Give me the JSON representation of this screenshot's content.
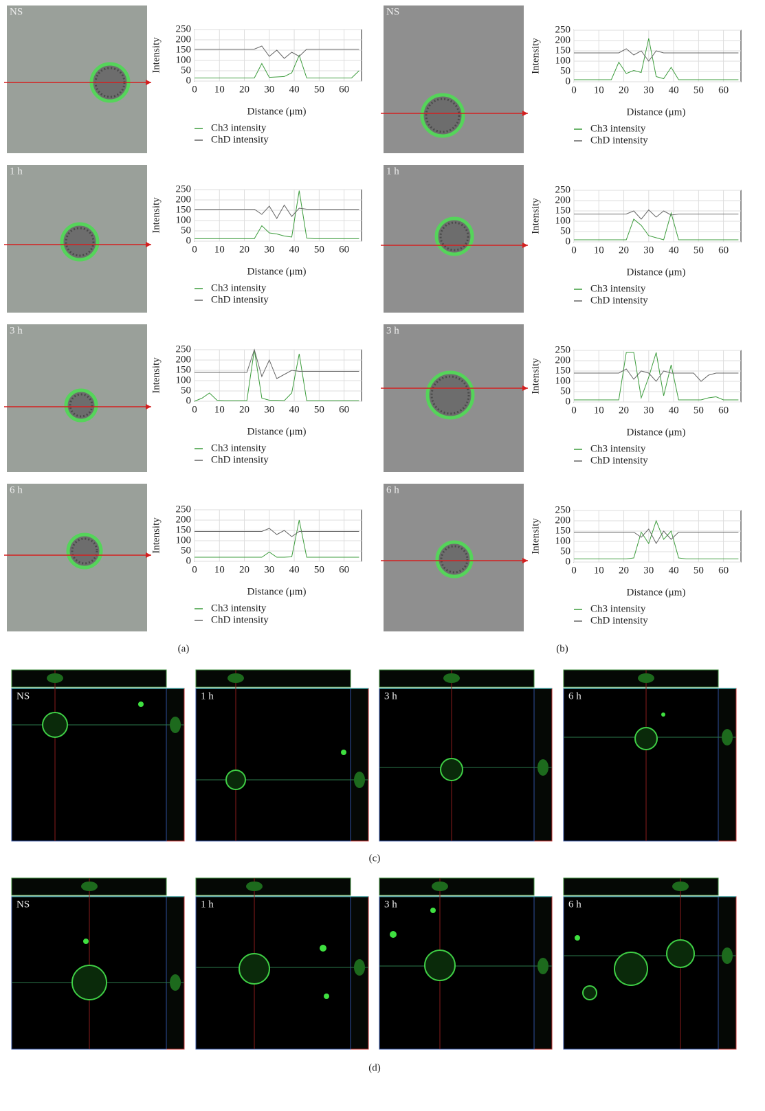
{
  "captions": [
    "(a)",
    "(b)",
    "(c)",
    "(d)"
  ],
  "chart_data": [
    {
      "type": "line",
      "image_label": "NS",
      "x_label": "Distance (μm)",
      "y_label": "Intensity",
      "x": [
        0,
        3,
        6,
        9,
        12,
        15,
        18,
        21,
        24,
        27,
        30,
        33,
        36,
        39,
        42,
        45,
        48,
        51,
        54,
        57,
        60,
        63,
        66
      ],
      "series": [
        {
          "name": "Ch3 intensity",
          "color": "#3c9c3c",
          "values": [
            15,
            15,
            15,
            15,
            15,
            15,
            15,
            15,
            15,
            85,
            18,
            20,
            22,
            40,
            125,
            15,
            15,
            15,
            15,
            15,
            15,
            15,
            50
          ]
        },
        {
          "name": "ChD intensity",
          "color": "#666666",
          "values": [
            155,
            155,
            155,
            155,
            155,
            155,
            155,
            155,
            155,
            170,
            120,
            150,
            110,
            140,
            120,
            155,
            155,
            155,
            155,
            155,
            155,
            155,
            155
          ]
        }
      ],
      "xlim": [
        0,
        67
      ],
      "ylim": [
        0,
        250
      ],
      "xticks": [
        0,
        10,
        20,
        30,
        40,
        50,
        60
      ],
      "yticks": [
        0,
        50,
        100,
        150,
        200,
        250
      ],
      "grid": true
    },
    {
      "type": "line",
      "image_label": "1 h",
      "x_label": "Distance (μm)",
      "y_label": "Intensity",
      "x": [
        0,
        3,
        6,
        9,
        12,
        15,
        18,
        21,
        24,
        27,
        30,
        33,
        36,
        39,
        42,
        45,
        48,
        51,
        54,
        57,
        60,
        63,
        66
      ],
      "series": [
        {
          "name": "Ch3 intensity",
          "color": "#3c9c3c",
          "values": [
            12,
            12,
            12,
            12,
            12,
            12,
            12,
            12,
            12,
            75,
            40,
            35,
            25,
            20,
            245,
            15,
            12,
            12,
            12,
            12,
            12,
            12,
            12
          ]
        },
        {
          "name": "ChD intensity",
          "color": "#666666",
          "values": [
            155,
            155,
            155,
            155,
            155,
            155,
            155,
            155,
            155,
            130,
            170,
            110,
            175,
            120,
            160,
            155,
            155,
            155,
            155,
            155,
            155,
            155,
            155
          ]
        }
      ],
      "xlim": [
        0,
        67
      ],
      "ylim": [
        0,
        250
      ],
      "xticks": [
        0,
        10,
        20,
        30,
        40,
        50,
        60
      ],
      "yticks": [
        0,
        50,
        100,
        150,
        200,
        250
      ],
      "grid": true
    },
    {
      "type": "line",
      "image_label": "3 h",
      "x_label": "Distance (μm)",
      "y_label": "Intensity",
      "x": [
        0,
        3,
        6,
        9,
        12,
        15,
        18,
        21,
        24,
        27,
        30,
        33,
        36,
        39,
        42,
        45,
        48,
        51,
        54,
        57,
        60,
        63,
        66
      ],
      "series": [
        {
          "name": "Ch3 intensity",
          "color": "#3c9c3c",
          "values": [
            0,
            15,
            40,
            5,
            3,
            3,
            3,
            3,
            250,
            15,
            5,
            5,
            3,
            40,
            230,
            3,
            3,
            3,
            3,
            3,
            3,
            3,
            3
          ]
        },
        {
          "name": "ChD intensity",
          "color": "#666666",
          "values": [
            140,
            140,
            140,
            140,
            140,
            140,
            140,
            140,
            250,
            120,
            200,
            110,
            130,
            150,
            145,
            145,
            145,
            145,
            145,
            145,
            145,
            145,
            145
          ]
        }
      ],
      "xlim": [
        0,
        67
      ],
      "ylim": [
        0,
        250
      ],
      "xticks": [
        0,
        10,
        20,
        30,
        40,
        50,
        60
      ],
      "yticks": [
        0,
        50,
        100,
        150,
        200,
        250
      ],
      "grid": true
    },
    {
      "type": "line",
      "image_label": "6 h",
      "x_label": "Distance (μm)",
      "y_label": "Intensity",
      "x": [
        0,
        3,
        6,
        9,
        12,
        15,
        18,
        21,
        24,
        27,
        30,
        33,
        36,
        39,
        42,
        45,
        48,
        51,
        54,
        57,
        60,
        63,
        66
      ],
      "series": [
        {
          "name": "Ch3 intensity",
          "color": "#3c9c3c",
          "values": [
            20,
            20,
            20,
            20,
            20,
            20,
            20,
            20,
            20,
            20,
            45,
            20,
            20,
            22,
            200,
            20,
            20,
            20,
            20,
            20,
            20,
            20,
            20
          ]
        },
        {
          "name": "ChD intensity",
          "color": "#666666",
          "values": [
            145,
            145,
            145,
            145,
            145,
            145,
            145,
            145,
            145,
            145,
            160,
            130,
            150,
            120,
            145,
            145,
            145,
            145,
            145,
            145,
            145,
            145,
            145
          ]
        }
      ],
      "xlim": [
        0,
        67
      ],
      "ylim": [
        0,
        250
      ],
      "xticks": [
        0,
        10,
        20,
        30,
        40,
        50,
        60
      ],
      "yticks": [
        0,
        50,
        100,
        150,
        200,
        250
      ],
      "grid": true
    },
    {
      "type": "line",
      "image_label": "NS",
      "x_label": "Distance (μm)",
      "y_label": "Intensity",
      "x": [
        0,
        3,
        6,
        9,
        12,
        15,
        18,
        21,
        24,
        27,
        30,
        33,
        36,
        39,
        42,
        45,
        48,
        51,
        54,
        57,
        60,
        63,
        66
      ],
      "series": [
        {
          "name": "Ch3 intensity",
          "color": "#3c9c3c",
          "values": [
            10,
            10,
            10,
            10,
            10,
            10,
            95,
            40,
            55,
            45,
            210,
            25,
            15,
            70,
            10,
            10,
            10,
            10,
            10,
            10,
            10,
            10,
            10
          ]
        },
        {
          "name": "ChD intensity",
          "color": "#666666",
          "values": [
            140,
            140,
            140,
            140,
            140,
            140,
            140,
            160,
            130,
            150,
            100,
            150,
            140,
            140,
            140,
            140,
            140,
            140,
            140,
            140,
            140,
            140,
            140
          ]
        }
      ],
      "xlim": [
        0,
        67
      ],
      "ylim": [
        0,
        250
      ],
      "xticks": [
        0,
        10,
        20,
        30,
        40,
        50,
        60
      ],
      "yticks": [
        0,
        50,
        100,
        150,
        200,
        250
      ],
      "grid": true
    },
    {
      "type": "line",
      "image_label": "1 h",
      "x_label": "Distance (μm)",
      "y_label": "Intensity",
      "x": [
        0,
        3,
        6,
        9,
        12,
        15,
        18,
        21,
        24,
        27,
        30,
        33,
        36,
        39,
        42,
        45,
        48,
        51,
        54,
        57,
        60,
        63,
        66
      ],
      "series": [
        {
          "name": "Ch3 intensity",
          "color": "#3c9c3c",
          "values": [
            10,
            10,
            10,
            10,
            10,
            10,
            10,
            10,
            110,
            80,
            30,
            20,
            10,
            140,
            10,
            10,
            10,
            10,
            10,
            10,
            10,
            10,
            10
          ]
        },
        {
          "name": "ChD intensity",
          "color": "#666666",
          "values": [
            135,
            135,
            135,
            135,
            135,
            135,
            135,
            135,
            150,
            110,
            155,
            120,
            150,
            130,
            135,
            135,
            135,
            135,
            135,
            135,
            135,
            135,
            135
          ]
        }
      ],
      "xlim": [
        0,
        67
      ],
      "ylim": [
        0,
        250
      ],
      "xticks": [
        0,
        10,
        20,
        30,
        40,
        50,
        60
      ],
      "yticks": [
        0,
        50,
        100,
        150,
        200,
        250
      ],
      "grid": true
    },
    {
      "type": "line",
      "image_label": "3 h",
      "x_label": "Distance (μm)",
      "y_label": "Intensity",
      "x": [
        0,
        3,
        6,
        9,
        12,
        15,
        18,
        21,
        24,
        27,
        30,
        33,
        36,
        39,
        42,
        45,
        48,
        51,
        54,
        57,
        60,
        63,
        66
      ],
      "series": [
        {
          "name": "Ch3 intensity",
          "color": "#3c9c3c",
          "values": [
            10,
            10,
            10,
            10,
            10,
            10,
            10,
            240,
            240,
            20,
            120,
            240,
            30,
            180,
            10,
            10,
            10,
            10,
            20,
            25,
            10,
            10,
            10
          ]
        },
        {
          "name": "ChD intensity",
          "color": "#666666",
          "values": [
            140,
            140,
            140,
            140,
            140,
            140,
            140,
            160,
            110,
            150,
            140,
            100,
            150,
            140,
            140,
            140,
            140,
            100,
            130,
            140,
            140,
            140,
            140
          ]
        }
      ],
      "xlim": [
        0,
        67
      ],
      "ylim": [
        0,
        250
      ],
      "xticks": [
        0,
        10,
        20,
        30,
        40,
        50,
        60
      ],
      "yticks": [
        0,
        50,
        100,
        150,
        200,
        250
      ],
      "grid": true
    },
    {
      "type": "line",
      "image_label": "6 h",
      "x_label": "Distance (μm)",
      "y_label": "Intensity",
      "x": [
        0,
        3,
        6,
        9,
        12,
        15,
        18,
        21,
        24,
        27,
        30,
        33,
        36,
        39,
        42,
        45,
        48,
        51,
        54,
        57,
        60,
        63,
        66
      ],
      "series": [
        {
          "name": "Ch3 intensity",
          "color": "#3c9c3c",
          "values": [
            15,
            15,
            15,
            15,
            15,
            15,
            15,
            15,
            20,
            145,
            90,
            200,
            110,
            150,
            20,
            15,
            15,
            15,
            15,
            15,
            15,
            15,
            15
          ]
        },
        {
          "name": "ChD intensity",
          "color": "#666666",
          "values": [
            145,
            145,
            145,
            145,
            145,
            145,
            145,
            145,
            145,
            120,
            160,
            90,
            150,
            110,
            145,
            145,
            145,
            145,
            145,
            145,
            145,
            145,
            145
          ]
        }
      ],
      "xlim": [
        0,
        67
      ],
      "ylim": [
        0,
        250
      ],
      "xticks": [
        0,
        10,
        20,
        30,
        40,
        50,
        60
      ],
      "yticks": [
        0,
        50,
        100,
        150,
        200,
        250
      ],
      "grid": true
    }
  ],
  "orthogonal_views": [
    {
      "labels": [
        "NS",
        "1 h",
        "3 h",
        "6 h"
      ]
    },
    {
      "labels": [
        "NS",
        "1 h",
        "3 h",
        "6 h"
      ]
    }
  ]
}
